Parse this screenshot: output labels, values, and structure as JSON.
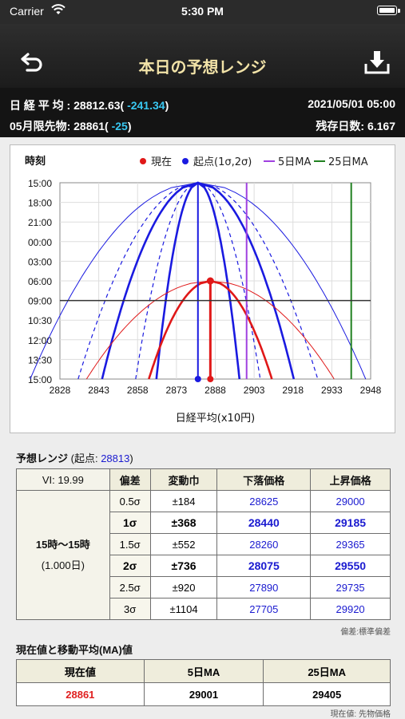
{
  "status": {
    "carrier": "Carrier",
    "time": "5:30 PM"
  },
  "nav": {
    "title": "本日の予想レンジ",
    "back_icon": "undo-arrow-icon",
    "download_icon": "download-tray-icon"
  },
  "info": {
    "nikkei_label": "日 経 平 均 : ",
    "nikkei_value": "28812.63(",
    "nikkei_change": " -241.34",
    "nikkei_close": ")",
    "datetime": "2021/05/01 05:00",
    "futures_label": "05月限先物: ",
    "futures_value": "28861(",
    "futures_change": " -25",
    "futures_close": ")",
    "days_left": "残存日数: 6.167"
  },
  "chart_data": {
    "type": "line",
    "ylabel": "時刻",
    "xlabel": "日経平均(x10円)",
    "x_ticks": [
      "2828",
      "2843",
      "2858",
      "2873",
      "2888",
      "2903",
      "2918",
      "2933",
      "2948"
    ],
    "y_ticks": [
      "15:00",
      "18:00",
      "21:00",
      "00:00",
      "03:00",
      "06:00",
      "09:00",
      "10:30",
      "12:00",
      "13:30",
      "15:00"
    ],
    "legend": [
      {
        "label": "現在",
        "color": "#e01818",
        "marker": "dot"
      },
      {
        "label": "起点(1σ,2σ)",
        "color": "#1a1ae0",
        "marker": "dot"
      },
      {
        "label": "5日MA",
        "color": "#a040e0",
        "marker": "line"
      },
      {
        "label": "25日MA",
        "color": "#208020",
        "marker": "line"
      }
    ],
    "origin_x": 2881.3,
    "current_x": 2886.1,
    "ma5_x": 2900.1,
    "ma25_x": 2940.5,
    "current_peak_y": "06:00"
  },
  "range_section": {
    "title": "予想レンジ",
    "sub_open": " (起点: ",
    "origin": "28813",
    "sub_close": ")"
  },
  "range_table": {
    "vi": "VI: 19.99",
    "headers": [
      "偏差",
      "変動巾",
      "下落価格",
      "上昇価格"
    ],
    "period_line1": "15時〜15時",
    "period_line2": "(1.000日)",
    "rows": [
      {
        "sigma": "0.5σ",
        "width": "±184",
        "down": "28625",
        "up": "29000",
        "bold": false
      },
      {
        "sigma": "1σ",
        "width": "±368",
        "down": "28440",
        "up": "29185",
        "bold": true
      },
      {
        "sigma": "1.5σ",
        "width": "±552",
        "down": "28260",
        "up": "29365",
        "bold": false
      },
      {
        "sigma": "2σ",
        "width": "±736",
        "down": "28075",
        "up": "29550",
        "bold": true
      },
      {
        "sigma": "2.5σ",
        "width": "±920",
        "down": "27890",
        "up": "29735",
        "bold": false
      },
      {
        "sigma": "3σ",
        "width": "±1104",
        "down": "27705",
        "up": "29920",
        "bold": false
      }
    ],
    "note": "偏差:標準偏差"
  },
  "ma_section": {
    "title": "現在値と移動平均(MA)値"
  },
  "ma_table": {
    "headers": [
      "現在値",
      "5日MA",
      "25日MA"
    ],
    "values": [
      "28861",
      "29001",
      "29405"
    ],
    "note": "現在値: 先物価格"
  }
}
